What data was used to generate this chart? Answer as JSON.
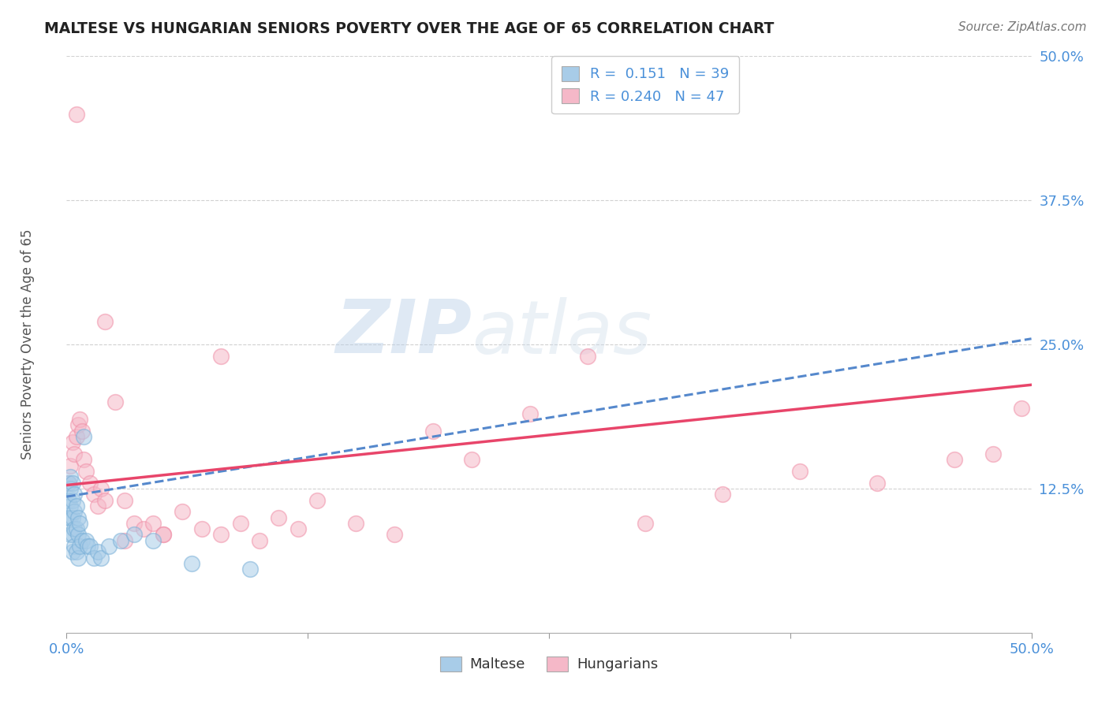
{
  "title": "MALTESE VS HUNGARIAN SENIORS POVERTY OVER THE AGE OF 65 CORRELATION CHART",
  "source": "Source: ZipAtlas.com",
  "ylabel": "Seniors Poverty Over the Age of 65",
  "xlim": [
    0.0,
    0.5
  ],
  "ylim": [
    0.0,
    0.5
  ],
  "xticks": [
    0.0,
    0.125,
    0.25,
    0.375,
    0.5
  ],
  "yticks": [
    0.125,
    0.25,
    0.375,
    0.5
  ],
  "xtick_labels_show": [
    "0.0%",
    "50.0%"
  ],
  "xtick_labels_pos": [
    0.0,
    0.5
  ],
  "ytick_labels": [
    "12.5%",
    "25.0%",
    "37.5%",
    "50.0%"
  ],
  "background_color": "#ffffff",
  "watermark_zip": "ZIP",
  "watermark_atlas": "atlas",
  "legend_text_color": "#4a90d9",
  "maltese_color": "#a8cce8",
  "hungarian_color": "#f5b8c8",
  "maltese_edge_color": "#7ab0d8",
  "hungarian_edge_color": "#f090a8",
  "maltese_line_color": "#5588cc",
  "hungarian_line_color": "#e8456a",
  "grid_color": "#cccccc",
  "tick_color": "#4a90d9",
  "maltese_x": [
    0.001,
    0.001,
    0.001,
    0.002,
    0.002,
    0.002,
    0.002,
    0.002,
    0.003,
    0.003,
    0.003,
    0.003,
    0.003,
    0.004,
    0.004,
    0.004,
    0.004,
    0.005,
    0.005,
    0.005,
    0.006,
    0.006,
    0.006,
    0.007,
    0.007,
    0.008,
    0.009,
    0.01,
    0.011,
    0.012,
    0.014,
    0.016,
    0.018,
    0.022,
    0.028,
    0.035,
    0.045,
    0.065,
    0.095
  ],
  "maltese_y": [
    0.13,
    0.115,
    0.1,
    0.135,
    0.125,
    0.11,
    0.1,
    0.085,
    0.13,
    0.115,
    0.1,
    0.085,
    0.07,
    0.12,
    0.105,
    0.09,
    0.075,
    0.11,
    0.09,
    0.07,
    0.1,
    0.085,
    0.065,
    0.095,
    0.075,
    0.08,
    0.17,
    0.08,
    0.075,
    0.075,
    0.065,
    0.07,
    0.065,
    0.075,
    0.08,
    0.085,
    0.08,
    0.06,
    0.055
  ],
  "hungarian_x": [
    0.001,
    0.002,
    0.003,
    0.004,
    0.005,
    0.006,
    0.007,
    0.008,
    0.009,
    0.01,
    0.012,
    0.014,
    0.016,
    0.018,
    0.02,
    0.025,
    0.03,
    0.035,
    0.04,
    0.045,
    0.05,
    0.06,
    0.07,
    0.08,
    0.09,
    0.1,
    0.11,
    0.12,
    0.13,
    0.15,
    0.17,
    0.19,
    0.21,
    0.24,
    0.27,
    0.3,
    0.34,
    0.38,
    0.42,
    0.46,
    0.48,
    0.495,
    0.005,
    0.02,
    0.03,
    0.05,
    0.08
  ],
  "hungarian_y": [
    0.13,
    0.145,
    0.165,
    0.155,
    0.17,
    0.18,
    0.185,
    0.175,
    0.15,
    0.14,
    0.13,
    0.12,
    0.11,
    0.125,
    0.115,
    0.2,
    0.115,
    0.095,
    0.09,
    0.095,
    0.085,
    0.105,
    0.09,
    0.085,
    0.095,
    0.08,
    0.1,
    0.09,
    0.115,
    0.095,
    0.085,
    0.175,
    0.15,
    0.19,
    0.24,
    0.095,
    0.12,
    0.14,
    0.13,
    0.15,
    0.155,
    0.195,
    0.45,
    0.27,
    0.08,
    0.085,
    0.24
  ],
  "maltese_trend_x0": 0.0,
  "maltese_trend_x1": 0.5,
  "maltese_trend_y0": 0.118,
  "maltese_trend_y1": 0.255,
  "hungarian_trend_x0": 0.0,
  "hungarian_trend_x1": 0.5,
  "hungarian_trend_y0": 0.128,
  "hungarian_trend_y1": 0.215
}
